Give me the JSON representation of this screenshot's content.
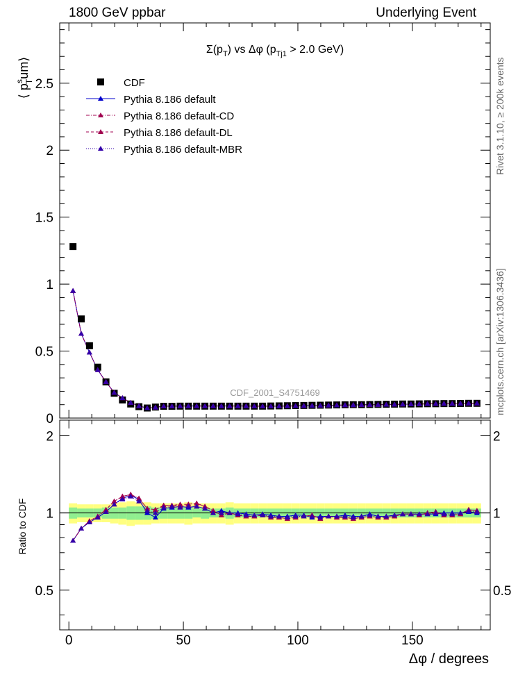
{
  "header": {
    "left": "1800 GeV ppbar",
    "right": "Underlying Event"
  },
  "side_labels": {
    "rivet": "Rivet 3.1.10, ≥ 200k events",
    "mcplots": "mcplots.cern.ch [arXiv:1306.3436]"
  },
  "watermark": "CDF_2001_S4751469",
  "chart_data": [
    {
      "type": "scatter",
      "panel": "main",
      "title": "Σ(pT) vs Δφ (pTj1 > 2.0 GeV)",
      "title_parts": {
        "a": "Σ(p",
        "a_sub": "T",
        "b": ") vs Δφ (p",
        "b_sub": "Tj1",
        "c": " > 2.0 GeV)"
      },
      "ylabel_parts": {
        "open": "⟨ p",
        "sup": "s",
        "sub": "T",
        "rest": "um⟩"
      },
      "xlim": [
        -4,
        184
      ],
      "ylim": [
        0,
        2.95
      ],
      "yticks": [
        0,
        0.5,
        1,
        1.5,
        2,
        2.5
      ],
      "ytick_labels": [
        "0",
        "0.5",
        "1",
        "1.5",
        "2",
        "2.5"
      ],
      "x": [
        1.8,
        5.4,
        9,
        12.6,
        16.2,
        19.8,
        23.4,
        27,
        30.6,
        34.2,
        37.8,
        41.4,
        45,
        48.6,
        52.2,
        55.8,
        59.4,
        63,
        66.6,
        70.2,
        73.8,
        77.4,
        81,
        84.6,
        88.2,
        91.8,
        95.4,
        99,
        102.6,
        106.2,
        109.8,
        113.4,
        117,
        120.6,
        124.2,
        127.8,
        131.4,
        135,
        138.6,
        142.2,
        145.8,
        149.4,
        153,
        156.6,
        160.2,
        163.8,
        167.4,
        171,
        174.6,
        178.2
      ],
      "series": [
        {
          "name": "CDF",
          "marker": "square",
          "color": "#000000",
          "values": [
            1.28,
            0.74,
            0.54,
            0.38,
            0.27,
            0.185,
            0.135,
            0.105,
            0.085,
            0.075,
            0.082,
            0.088,
            0.088,
            0.089,
            0.089,
            0.089,
            0.089,
            0.089,
            0.089,
            0.089,
            0.089,
            0.089,
            0.089,
            0.089,
            0.09,
            0.091,
            0.092,
            0.093,
            0.094,
            0.095,
            0.096,
            0.097,
            0.098,
            0.099,
            0.1,
            0.1,
            0.101,
            0.102,
            0.103,
            0.104,
            0.105,
            0.105,
            0.106,
            0.107,
            0.107,
            0.108,
            0.108,
            0.109,
            0.11,
            0.11
          ]
        },
        {
          "name": "Pythia 8.186 default",
          "marker": "triangle",
          "color": "#0000cc",
          "dash": "",
          "values": [
            0.95,
            0.63,
            0.49,
            0.36,
            0.27,
            0.19,
            0.15,
            0.115,
            0.09,
            0.075,
            0.08,
            0.089,
            0.089,
            0.09,
            0.09,
            0.09,
            0.09,
            0.09,
            0.09,
            0.09,
            0.09,
            0.09,
            0.089,
            0.089,
            0.089,
            0.089,
            0.09,
            0.091,
            0.092,
            0.093,
            0.094,
            0.095,
            0.096,
            0.097,
            0.098,
            0.099,
            0.1,
            0.1,
            0.101,
            0.102,
            0.103,
            0.104,
            0.105,
            0.106,
            0.107,
            0.108,
            0.108,
            0.109,
            0.11,
            0.11
          ]
        },
        {
          "name": "Pythia 8.186 default-CD",
          "marker": "triangle",
          "color": "#a0004f",
          "dash": "5,2,1,2",
          "values": [
            0.95,
            0.63,
            0.49,
            0.36,
            0.27,
            0.19,
            0.15,
            0.115,
            0.09,
            0.075,
            0.08,
            0.089,
            0.089,
            0.09,
            0.09,
            0.09,
            0.09,
            0.09,
            0.09,
            0.09,
            0.09,
            0.09,
            0.089,
            0.089,
            0.089,
            0.089,
            0.09,
            0.091,
            0.092,
            0.093,
            0.094,
            0.095,
            0.096,
            0.097,
            0.098,
            0.099,
            0.1,
            0.1,
            0.101,
            0.102,
            0.103,
            0.104,
            0.105,
            0.106,
            0.107,
            0.108,
            0.108,
            0.109,
            0.11,
            0.11
          ]
        },
        {
          "name": "Pythia 8.186 default-DL",
          "marker": "triangle",
          "color": "#a0004f",
          "dash": "4,3",
          "values": [
            0.95,
            0.63,
            0.49,
            0.36,
            0.27,
            0.19,
            0.15,
            0.115,
            0.09,
            0.075,
            0.08,
            0.089,
            0.089,
            0.09,
            0.09,
            0.09,
            0.09,
            0.09,
            0.09,
            0.09,
            0.09,
            0.09,
            0.089,
            0.089,
            0.089,
            0.089,
            0.09,
            0.091,
            0.092,
            0.093,
            0.094,
            0.095,
            0.096,
            0.097,
            0.098,
            0.099,
            0.1,
            0.1,
            0.101,
            0.102,
            0.103,
            0.104,
            0.105,
            0.106,
            0.107,
            0.108,
            0.108,
            0.109,
            0.11,
            0.11
          ]
        },
        {
          "name": "Pythia 8.186 default-MBR",
          "marker": "triangle",
          "color": "#3300aa",
          "dash": "1,2",
          "values": [
            0.95,
            0.63,
            0.49,
            0.36,
            0.27,
            0.19,
            0.15,
            0.115,
            0.09,
            0.075,
            0.08,
            0.089,
            0.089,
            0.09,
            0.09,
            0.09,
            0.09,
            0.09,
            0.09,
            0.09,
            0.09,
            0.09,
            0.089,
            0.089,
            0.089,
            0.089,
            0.09,
            0.091,
            0.092,
            0.093,
            0.094,
            0.095,
            0.096,
            0.097,
            0.098,
            0.099,
            0.1,
            0.1,
            0.101,
            0.102,
            0.103,
            0.104,
            0.105,
            0.106,
            0.107,
            0.108,
            0.108,
            0.109,
            0.11,
            0.11
          ]
        }
      ]
    },
    {
      "type": "scatter",
      "panel": "ratio",
      "ylabel": "Ratio to CDF",
      "xlabel": "Δφ / degrees",
      "xlim": [
        -4,
        184
      ],
      "ylim": [
        0.35,
        2.3
      ],
      "xticks": [
        0,
        50,
        100,
        150
      ],
      "xtick_labels": [
        "0",
        "50",
        "100",
        "150"
      ],
      "yticks": [
        0.5,
        1,
        2
      ],
      "ytick_labels": [
        "0.5",
        "1",
        "2"
      ],
      "x": [
        1.8,
        5.4,
        9,
        12.6,
        16.2,
        19.8,
        23.4,
        27,
        30.6,
        34.2,
        37.8,
        41.4,
        45,
        48.6,
        52.2,
        55.8,
        59.4,
        63,
        66.6,
        70.2,
        73.8,
        77.4,
        81,
        84.6,
        88.2,
        91.8,
        95.4,
        99,
        102.6,
        106.2,
        109.8,
        113.4,
        117,
        120.6,
        124.2,
        127.8,
        131.4,
        135,
        138.6,
        142.2,
        145.8,
        149.4,
        153,
        156.6,
        160.2,
        163.8,
        167.4,
        171,
        174.6,
        178.2
      ],
      "band_stat": [
        0.05,
        0.04,
        0.04,
        0.04,
        0.05,
        0.05,
        0.05,
        0.06,
        0.06,
        0.06,
        0.05,
        0.05,
        0.05,
        0.05,
        0.05,
        0.04,
        0.05,
        0.04,
        0.04,
        0.05,
        0.04,
        0.04,
        0.04,
        0.04,
        0.04,
        0.04,
        0.04,
        0.04,
        0.04,
        0.04,
        0.04,
        0.04,
        0.04,
        0.04,
        0.04,
        0.04,
        0.04,
        0.04,
        0.04,
        0.04,
        0.04,
        0.04,
        0.04,
        0.04,
        0.04,
        0.04,
        0.04,
        0.04,
        0.04,
        0.04
      ],
      "band_total": [
        0.09,
        0.08,
        0.08,
        0.08,
        0.08,
        0.09,
        0.1,
        0.11,
        0.1,
        0.1,
        0.09,
        0.09,
        0.09,
        0.09,
        0.1,
        0.09,
        0.09,
        0.09,
        0.09,
        0.1,
        0.09,
        0.09,
        0.09,
        0.09,
        0.09,
        0.09,
        0.09,
        0.09,
        0.09,
        0.09,
        0.09,
        0.09,
        0.09,
        0.09,
        0.09,
        0.09,
        0.09,
        0.09,
        0.09,
        0.09,
        0.09,
        0.09,
        0.09,
        0.09,
        0.09,
        0.09,
        0.09,
        0.09,
        0.09,
        0.09
      ],
      "series": [
        {
          "name": "Pythia 8.186 default",
          "color": "#0000cc",
          "values": [
            0.78,
            0.87,
            0.92,
            0.96,
            1.01,
            1.08,
            1.14,
            1.17,
            1.13,
            1.0,
            0.96,
            1.04,
            1.05,
            1.06,
            1.05,
            1.06,
            1.04,
            1.0,
            1.02,
            1.0,
            1.0,
            0.99,
            0.98,
            0.99,
            0.98,
            0.97,
            0.97,
            0.98,
            0.98,
            0.96,
            0.97,
            0.97,
            0.97,
            0.98,
            0.97,
            0.97,
            0.99,
            0.97,
            0.97,
            0.98,
            0.99,
            0.99,
            0.99,
            0.99,
            0.99,
            1.0,
            1.0,
            1.0,
            1.01,
            1.0
          ]
        },
        {
          "name": "Pythia 8.186 default-CD",
          "color": "#a0004f",
          "values": [
            0.78,
            0.87,
            0.93,
            0.97,
            1.03,
            1.11,
            1.16,
            1.18,
            1.14,
            1.04,
            1.03,
            1.07,
            1.07,
            1.06,
            1.08,
            1.09,
            1.06,
            1.02,
            0.98,
            1.0,
            0.98,
            0.97,
            0.97,
            0.98,
            0.96,
            0.96,
            0.95,
            0.96,
            0.97,
            0.98,
            0.95,
            0.97,
            0.96,
            0.96,
            0.95,
            0.96,
            0.97,
            0.96,
            0.96,
            0.97,
            0.99,
            0.99,
            0.98,
            1.0,
            1.01,
            0.98,
            0.98,
            0.99,
            1.03,
            1.02
          ]
        },
        {
          "name": "Pythia 8.186 default-DL",
          "color": "#a0004f",
          "values": [
            0.78,
            0.87,
            0.93,
            0.97,
            1.03,
            1.11,
            1.16,
            1.18,
            1.14,
            1.04,
            1.03,
            1.07,
            1.07,
            1.08,
            1.08,
            1.09,
            1.06,
            1.02,
            0.98,
            1.0,
            0.98,
            0.97,
            0.97,
            0.98,
            0.96,
            0.96,
            0.95,
            0.96,
            0.97,
            0.98,
            0.95,
            0.97,
            0.96,
            0.96,
            0.95,
            0.96,
            0.97,
            0.96,
            0.96,
            0.97,
            0.99,
            0.99,
            0.98,
            1.0,
            1.01,
            0.98,
            0.98,
            0.99,
            1.03,
            1.02
          ]
        },
        {
          "name": "Pythia 8.186 default-MBR",
          "color": "#3300aa",
          "values": [
            0.78,
            0.87,
            0.92,
            0.96,
            1.01,
            1.08,
            1.13,
            1.16,
            1.11,
            1.02,
            1.0,
            1.05,
            1.06,
            1.05,
            1.06,
            1.06,
            1.04,
            1.0,
            1.0,
            1.0,
            0.99,
            0.98,
            0.98,
            0.98,
            0.97,
            0.97,
            0.96,
            0.97,
            0.97,
            0.97,
            0.96,
            0.97,
            0.97,
            0.97,
            0.96,
            0.97,
            0.98,
            0.97,
            0.97,
            0.98,
            0.99,
            0.99,
            0.99,
            0.99,
            1.0,
            0.99,
            0.99,
            1.0,
            1.02,
            1.01
          ]
        }
      ]
    }
  ]
}
